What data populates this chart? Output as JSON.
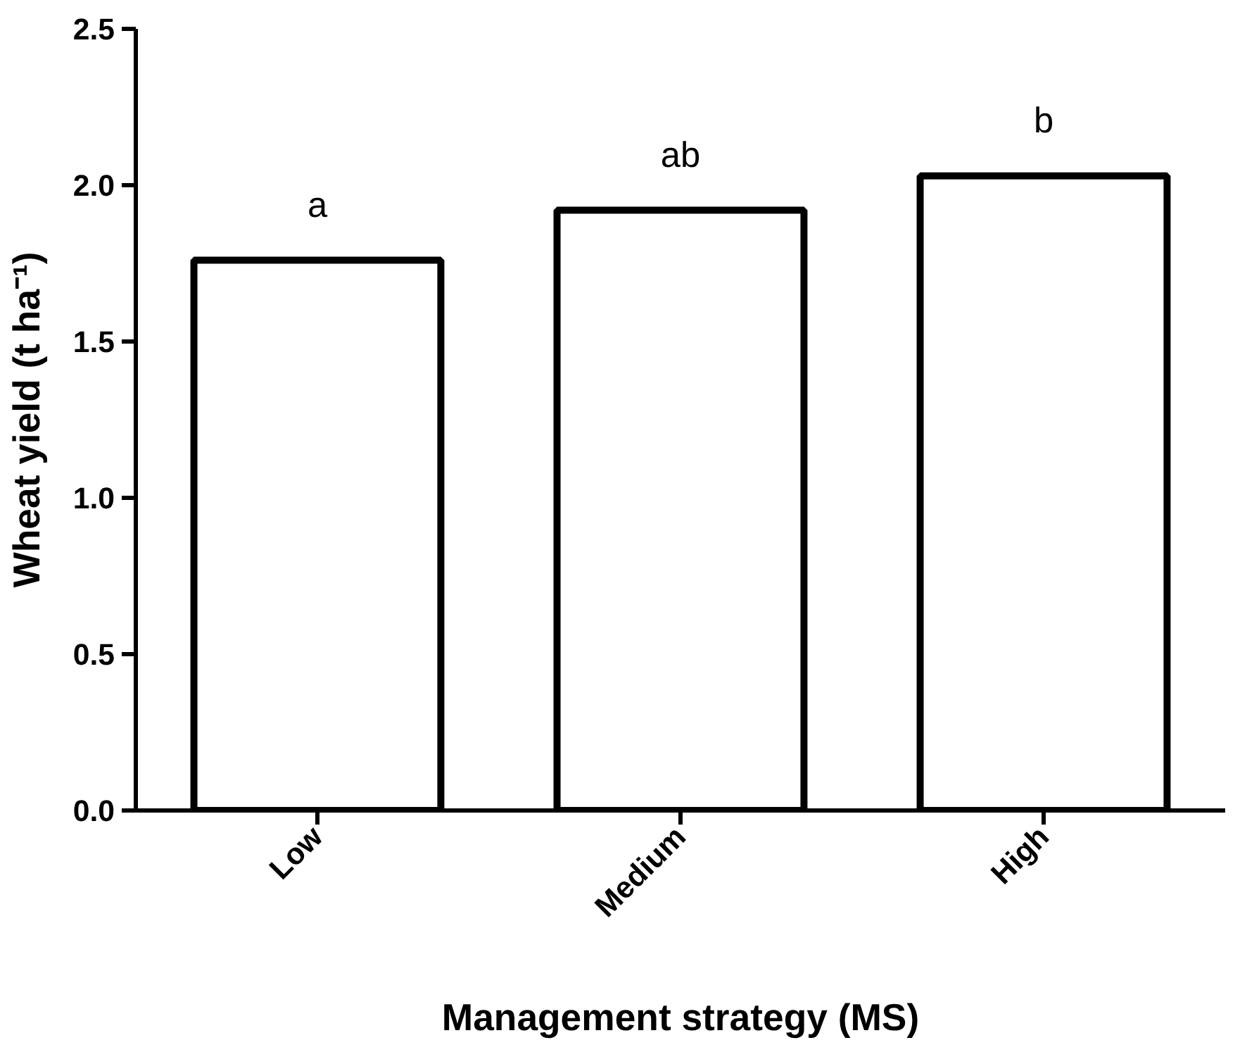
{
  "chart_data": {
    "type": "bar",
    "xlabel": "Management strategy (MS)",
    "ylabel": "Wheat yield (t ha⁻¹)",
    "categories": [
      "Low",
      "Medium",
      "High"
    ],
    "values": [
      1.76,
      1.92,
      2.03
    ],
    "color": "#ffffff",
    "ylim": [
      0,
      2.5
    ],
    "yticks": [
      {
        "value": 0,
        "label": "0.0"
      },
      {
        "value": 0.5,
        "label": "0.5"
      },
      {
        "value": 1,
        "label": "1.0"
      },
      {
        "value": 1.5,
        "label": "1.5"
      },
      {
        "value": 2,
        "label": "2.0"
      },
      {
        "value": 2.5,
        "label": "2.5"
      }
    ],
    "grid": false,
    "annotations": [
      "a",
      "ab",
      "b"
    ]
  }
}
